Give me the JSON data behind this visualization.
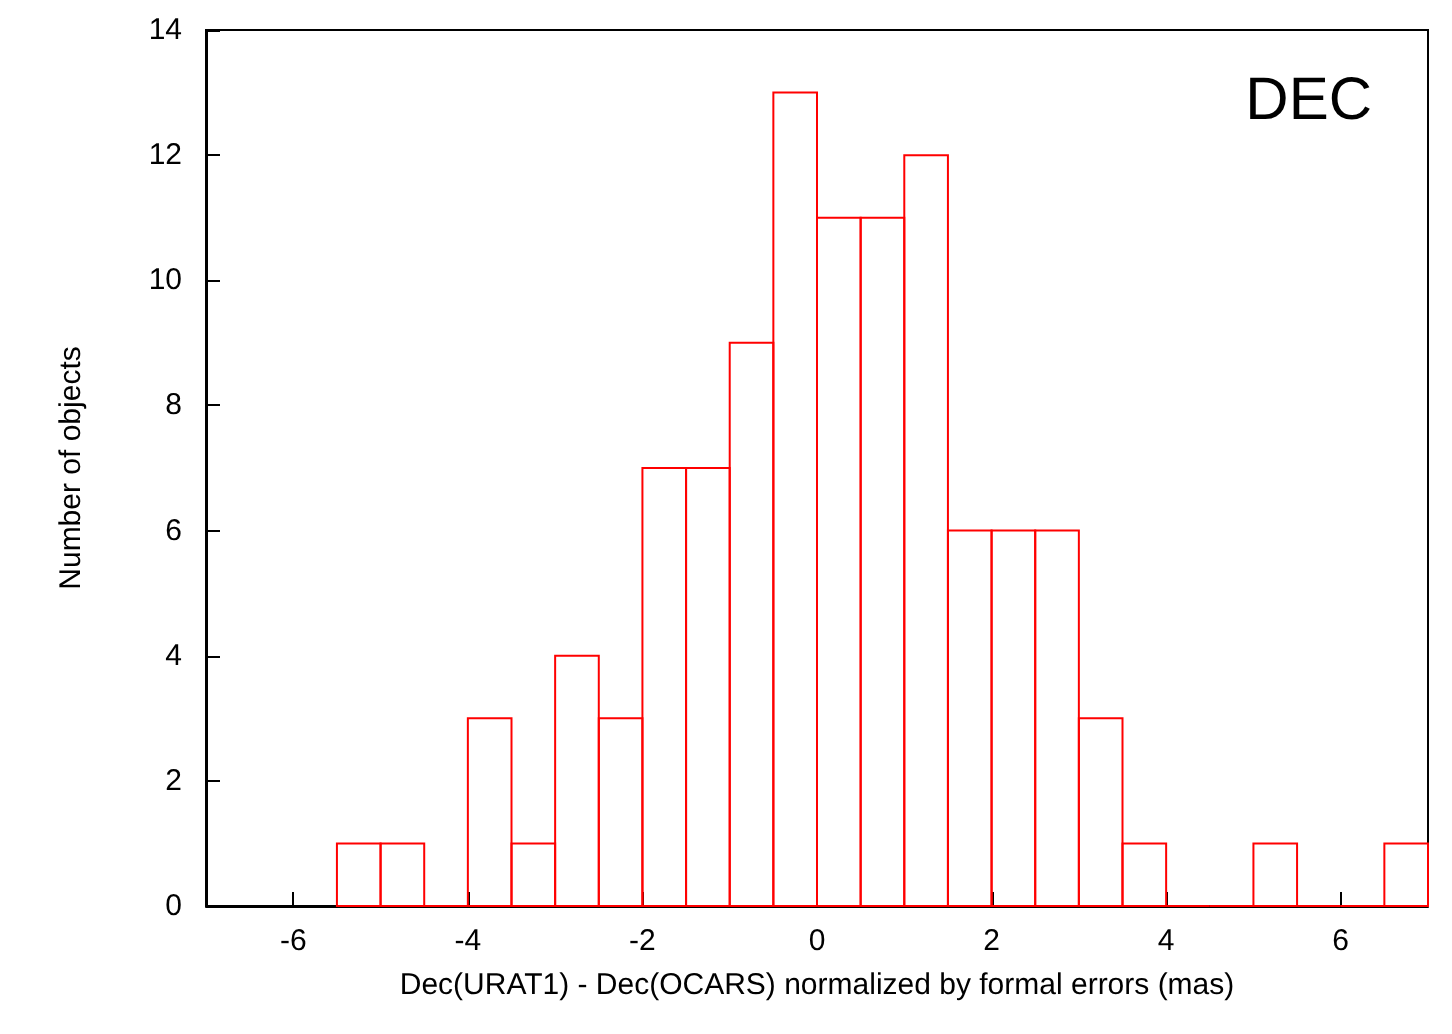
{
  "chart_data": {
    "type": "histogram",
    "xlabel": "Dec(URAT1) - Dec(OCARS) normalized by formal errors (mas)",
    "ylabel": "Number of objects",
    "annotations": [
      "DEC"
    ],
    "bins": [
      -5.5,
      -5,
      -4.5,
      -4,
      -3.5,
      -3,
      -2.5,
      -2,
      -1.5,
      -1,
      -0.5,
      0,
      0.5,
      1,
      1.5,
      2,
      2.5,
      3,
      3.5,
      4,
      4.5,
      5,
      5.5,
      6,
      6.5,
      7
    ],
    "values": [
      1,
      1,
      0,
      3,
      1,
      4,
      3,
      7,
      7,
      9,
      13,
      11,
      11,
      12,
      6,
      6,
      6,
      3,
      1,
      0,
      0,
      1,
      0,
      0,
      1
    ],
    "color": "#ff0000",
    "xlim": [
      -7,
      7
    ],
    "xticks": [
      -6,
      -4,
      -2,
      0,
      2,
      4,
      6
    ],
    "ylim": [
      0,
      14
    ],
    "yticks": [
      0,
      2,
      4,
      6,
      8,
      10,
      12,
      14
    ],
    "grid": false
  }
}
